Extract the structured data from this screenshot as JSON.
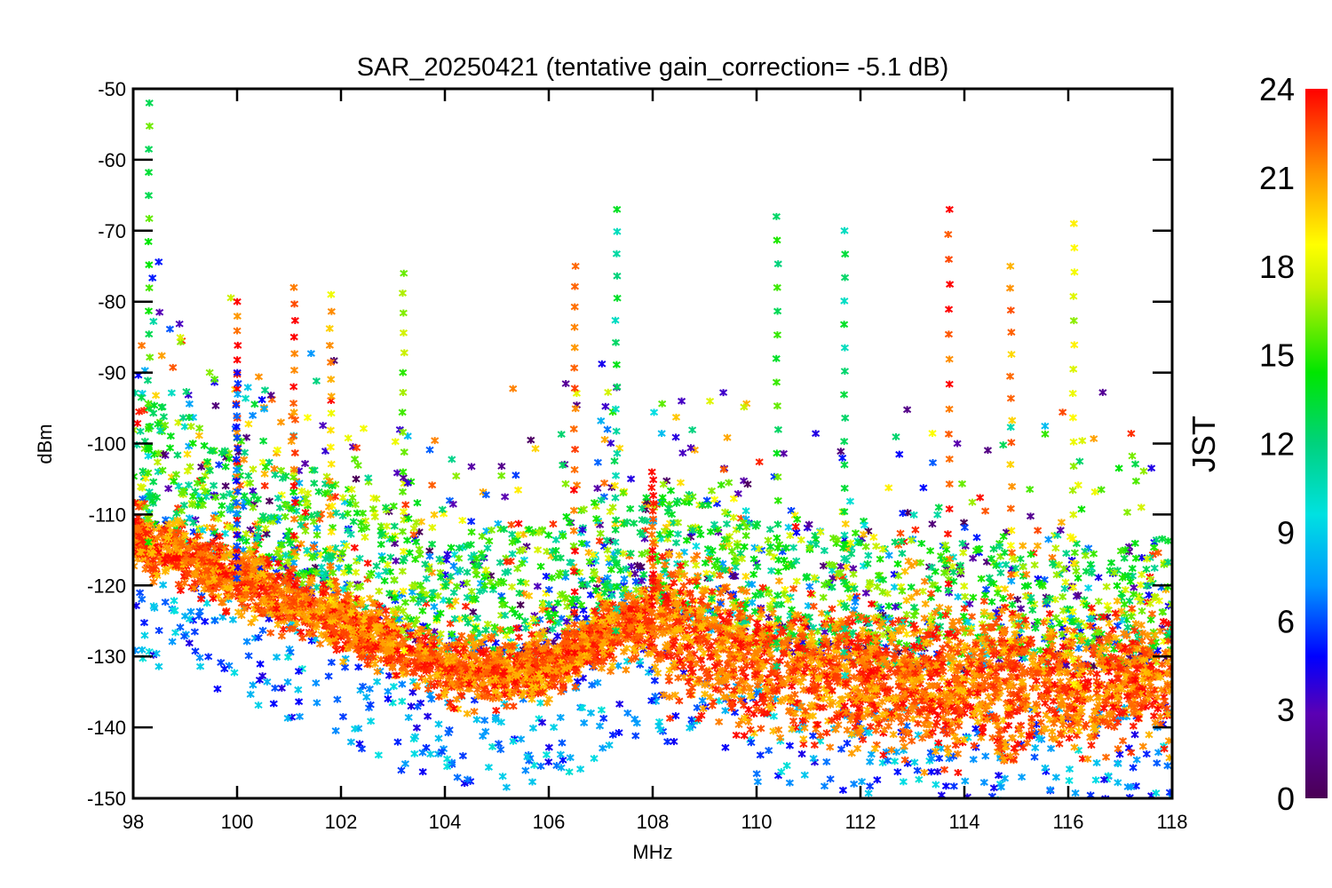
{
  "chart_data": {
    "type": "scatter",
    "title": "SAR_20250421 (tentative gain_correction= -5.1 dB)",
    "xlabel": "MHz",
    "ylabel": "dBm",
    "xlim": [
      98,
      118
    ],
    "ylim": [
      -150,
      -50
    ],
    "x_ticks": [
      "98",
      "100",
      "102",
      "104",
      "106",
      "108",
      "110",
      "112",
      "114",
      "116",
      "118"
    ],
    "y_ticks": [
      "-50",
      "-60",
      "-70",
      "-80",
      "-90",
      "-100",
      "-110",
      "-120",
      "-130",
      "-140",
      "-150"
    ],
    "colorbar": {
      "label": "JST",
      "range": [
        0,
        24
      ],
      "ticks": [
        "0",
        "3",
        "6",
        "9",
        "12",
        "15",
        "18",
        "21",
        "24"
      ],
      "colormap": "rainbow"
    },
    "series": [
      {
        "name": "noise floor (late JST, red)",
        "color": "#ff3300",
        "description": "dense band",
        "floor_points": [
          [
            98,
            -113
          ],
          [
            100,
            -119
          ],
          [
            102,
            -125
          ],
          [
            104,
            -132
          ],
          [
            106,
            -132
          ],
          [
            107,
            -127
          ],
          [
            108,
            -125
          ],
          [
            110,
            -131
          ],
          [
            112,
            -133
          ],
          [
            114,
            -134
          ],
          [
            116,
            -134
          ],
          [
            118,
            -133
          ]
        ]
      },
      {
        "name": "signal peaks",
        "peaks": [
          {
            "freq": 98.3,
            "top_dBm": -52,
            "jst": 14
          },
          {
            "freq": 100.0,
            "top_dBm": -80,
            "jst": 23
          },
          {
            "freq": 100.0,
            "bottom_dBm": -90,
            "jst": 6
          },
          {
            "freq": 101.1,
            "top_dBm": -78,
            "jst": 23
          },
          {
            "freq": 101.8,
            "top_dBm": -79,
            "jst": 20
          },
          {
            "freq": 103.2,
            "top_dBm": -76,
            "jst": 17
          },
          {
            "freq": 106.5,
            "top_dBm": -75,
            "jst": 23
          },
          {
            "freq": 107.3,
            "top_dBm": -67,
            "jst": 12
          },
          {
            "freq": 108.0,
            "top_dBm": -104,
            "jst": 23
          },
          {
            "freq": 110.4,
            "top_dBm": -68,
            "jst": 14
          },
          {
            "freq": 111.7,
            "top_dBm": -70,
            "jst": 12
          },
          {
            "freq": 113.7,
            "top_dBm": -67,
            "jst": 23
          },
          {
            "freq": 114.9,
            "top_dBm": -75,
            "jst": 21
          },
          {
            "freq": 116.1,
            "top_dBm": -69,
            "jst": 18
          }
        ]
      }
    ]
  }
}
